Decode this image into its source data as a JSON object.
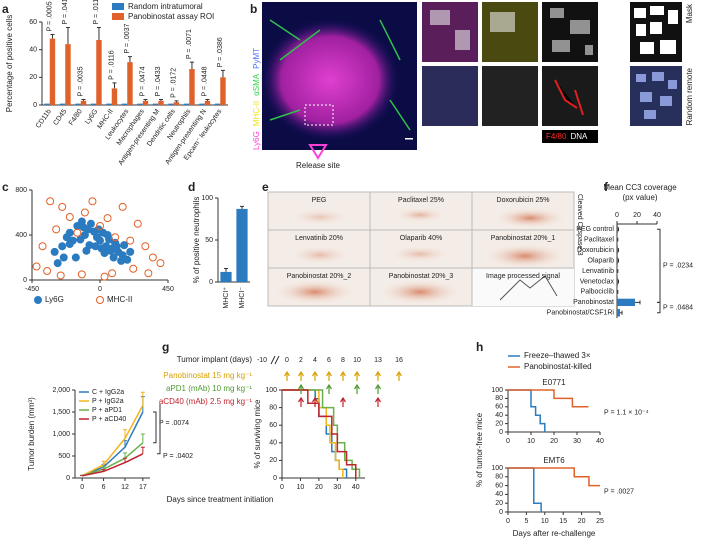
{
  "chart_data": [
    {
      "type": "bar",
      "panel": "a",
      "ylabel": "Percentage of positive cells",
      "categories": [
        "CD11b",
        "CD45",
        "F4/80",
        "Ly6G",
        "MHC-II",
        "Leukocytes",
        "Macrophages",
        "Antigen-presenting M",
        "Dendritic cells",
        "Neutrophils",
        "Antigen-presenting N",
        "Epcam⁻ leukocytes"
      ],
      "series": [
        {
          "name": "Random intratumoral",
          "color": "#2b7bc0",
          "values": [
            1,
            1,
            1,
            1,
            1,
            1,
            1,
            1,
            1,
            1,
            1,
            1
          ]
        },
        {
          "name": "Panobinostat assay ROI",
          "color": "#e0622a",
          "values": [
            48,
            44,
            3,
            47,
            12,
            31,
            3,
            3,
            2,
            26,
            3,
            20
          ],
          "errors": [
            3,
            12,
            1,
            9,
            4,
            4,
            1,
            1,
            1,
            5,
            1,
            5
          ]
        }
      ],
      "p_labels": [
        "P = .0005",
        "P = .0419",
        "P = .0035",
        "P = .0116",
        "P = .0116",
        "P = .0037",
        "P = .0474",
        "P = .0433",
        "P = .0172",
        "P = .0071",
        "P = .0448",
        "P = .0386"
      ],
      "ylim": [
        0,
        60
      ],
      "yticks": [
        0,
        20,
        40,
        60
      ],
      "legend": "upper right"
    },
    {
      "type": "scatter",
      "panel": "c",
      "xlim": [
        -450,
        450
      ],
      "xticks": [
        -450,
        0,
        450
      ],
      "ylim": [
        0,
        800
      ],
      "yticks": [
        0,
        400,
        800
      ],
      "legend": "lower left",
      "series": [
        {
          "name": "Ly6G",
          "color": "#2b7bc0",
          "filled": true,
          "x": [
            -300,
            -250,
            -220,
            -200,
            -180,
            -150,
            -120,
            -100,
            -80,
            -60,
            -40,
            -20,
            0,
            20,
            40,
            60,
            80,
            100,
            120,
            150,
            180,
            -280,
            -160,
            -90,
            -30,
            30,
            90,
            140,
            -200,
            -130,
            -70,
            10,
            70,
            -240,
            -10,
            50,
            110,
            -110,
            160,
            200
          ],
          "values": [
            250,
            300,
            380,
            420,
            350,
            480,
            520,
            400,
            450,
            500,
            430,
            380,
            350,
            420,
            300,
            360,
            280,
            330,
            250,
            220,
            180,
            150,
            200,
            260,
            300,
            240,
            200,
            170,
            320,
            360,
            310,
            280,
            260,
            200,
            450,
            400,
            300,
            470,
            310,
            250
          ]
        },
        {
          "name": "MHC-II",
          "color": "#e0622a",
          "filled": false,
          "x": [
            -420,
            -380,
            -330,
            -290,
            -250,
            -200,
            -150,
            -100,
            -50,
            0,
            50,
            100,
            150,
            200,
            250,
            300,
            350,
            400,
            -350,
            -120,
            80,
            220,
            -260,
            30,
            320
          ],
          "values": [
            120,
            300,
            700,
            450,
            650,
            560,
            420,
            600,
            700,
            480,
            550,
            380,
            650,
            350,
            500,
            300,
            200,
            150,
            80,
            50,
            60,
            100,
            40,
            30,
            60
          ]
        }
      ]
    },
    {
      "type": "bar",
      "panel": "d",
      "ylabel": "% of positive neutrophils",
      "categories": [
        "MHCI⁺",
        "MHCI⁻"
      ],
      "values": [
        12,
        87
      ],
      "errors": [
        4,
        3
      ],
      "color": "#2b7bc0",
      "ylim": [
        0,
        100
      ],
      "yticks": [
        0,
        50,
        100
      ]
    },
    {
      "type": "bar",
      "orientation": "horizontal",
      "panel": "f",
      "title": "Mean CC3 coverage",
      "subtitle": "(px value)",
      "categories": [
        "PEG control",
        "Paclitaxel",
        "Doxorubicin",
        "Olaparib",
        "Lenvatinib",
        "Venetoclax",
        "Palbociclib",
        "Panobinostat",
        "Panobinostat/CSF1Ri"
      ],
      "values": [
        1,
        0.5,
        1,
        1,
        0.5,
        1,
        0.5,
        18,
        3
      ],
      "errors": [
        0.5,
        0.3,
        0.5,
        0.5,
        0.3,
        0.5,
        0.3,
        5,
        2
      ],
      "color": "#2b7bc0",
      "xlim": [
        0,
        40
      ],
      "xticks": [
        0,
        20,
        40
      ],
      "p_labels": [
        "P = .0234",
        "P = .0484"
      ]
    },
    {
      "type": "line",
      "panel": "g",
      "ylabel": "Tumor burden (mm³)",
      "xlabel": "Days since treatment initiation",
      "x": [
        0,
        6,
        12,
        17
      ],
      "xlim": [
        -2,
        19
      ],
      "xticks": [
        0,
        6,
        12,
        17
      ],
      "ylim": [
        0,
        2000
      ],
      "yticks": [
        0,
        500,
        {
          "value": 1000,
          "label": "1,000"
        },
        {
          "value": 1500,
          "label": "1,500"
        },
        {
          "value": 2000,
          "label": "2,000"
        }
      ],
      "legend": "upper left",
      "series": [
        {
          "name": "C + IgG2a",
          "color": "#2b7bc0",
          "values": [
            50,
            250,
            700,
            1500
          ],
          "errors": [
            10,
            60,
            150,
            350
          ]
        },
        {
          "name": "P + IgG2a",
          "color": "#f2b51c",
          "values": [
            50,
            300,
            900,
            1650
          ],
          "errors": [
            10,
            80,
            200,
            300
          ]
        },
        {
          "name": "P + aPD1",
          "color": "#6ab04c",
          "values": [
            50,
            200,
            450,
            800
          ],
          "errors": [
            10,
            50,
            120,
            200
          ]
        },
        {
          "name": "P + aCD40",
          "color": "#c0232c",
          "values": [
            50,
            150,
            350,
            550
          ],
          "errors": [
            10,
            40,
            100,
            150
          ]
        }
      ],
      "p_labels": [
        "P = .0074",
        "P = .0402"
      ]
    },
    {
      "type": "step",
      "ylabel": "% of surviving mice",
      "xlim": [
        0,
        45
      ],
      "xticks": [
        0,
        10,
        20,
        30,
        40
      ],
      "ylim": [
        0,
        100
      ],
      "yticks": [
        0,
        20,
        40,
        60,
        80,
        100
      ],
      "series": [
        {
          "color": "#2b7bc0",
          "x": [
            0,
            18,
            20,
            24,
            27,
            29,
            31,
            35
          ],
          "values": [
            100,
            90,
            70,
            50,
            30,
            20,
            10,
            0
          ]
        },
        {
          "color": "#f2b51c",
          "x": [
            0,
            20,
            24,
            26,
            29,
            31,
            33
          ],
          "values": [
            100,
            80,
            60,
            40,
            20,
            10,
            0
          ]
        },
        {
          "color": "#6ab04c",
          "x": [
            0,
            22,
            28,
            30,
            34,
            38,
            42
          ],
          "values": [
            100,
            80,
            60,
            40,
            20,
            10,
            0
          ]
        },
        {
          "color": "#c0232c",
          "x": [
            0,
            14,
            20,
            27,
            30,
            35,
            40
          ],
          "values": [
            100,
            85,
            70,
            50,
            30,
            15,
            0
          ]
        }
      ]
    },
    {
      "type": "step",
      "panel": "h",
      "title": "E0771",
      "ylabel": "% of tumor-free mice",
      "xlim": [
        0,
        40
      ],
      "xticks": [
        0,
        10,
        20,
        30,
        40
      ],
      "ylim": [
        0,
        100
      ],
      "yticks": [
        0,
        20,
        40,
        60,
        80,
        100
      ],
      "legend": "upper right",
      "series": [
        {
          "name": "Freeze–thawed 3×",
          "color": "#2b7bc0",
          "x": [
            0,
            10,
            12,
            14,
            16
          ],
          "values": [
            100,
            60,
            40,
            20,
            0
          ]
        },
        {
          "name": "Panobinostat-killed",
          "color": "#e0622a",
          "x": [
            0,
            20,
            28,
            35
          ],
          "values": [
            100,
            80,
            60,
            60
          ]
        }
      ],
      "p_labels": [
        "P = 1.1 × 10⁻⁴"
      ]
    },
    {
      "type": "step",
      "title": "EMT6",
      "xlabel": "Days after re-challenge",
      "xlim": [
        0,
        25
      ],
      "xticks": [
        0,
        5,
        10,
        15,
        20,
        25
      ],
      "ylim": [
        0,
        100
      ],
      "yticks": [
        0,
        20,
        40,
        60,
        80,
        100
      ],
      "series": [
        {
          "color": "#2b7bc0",
          "x": [
            0,
            7,
            9
          ],
          "values": [
            100,
            20,
            0
          ]
        },
        {
          "color": "#e0622a",
          "x": [
            0,
            18,
            22,
            25
          ],
          "values": [
            100,
            80,
            60,
            60
          ]
        }
      ],
      "p_labels": [
        "P = .0027"
      ]
    }
  ],
  "panel_b": {
    "panel": "b",
    "channels": [
      {
        "text": "Ly6G",
        "color": "#ff3fd8"
      },
      {
        "text": "MHC-II",
        "color": "#f5e11a"
      },
      {
        "text": "αSMA",
        "color": "#35d04a"
      },
      {
        "text": "PyMT",
        "color": "#4a6dff"
      }
    ],
    "release_site": "Release site",
    "stain": [
      {
        "text": "F4/80",
        "color": "#ff2a2a"
      },
      {
        "text": "DNA",
        "color": "#ffffff"
      }
    ],
    "mask": "Mask",
    "random_remote": "Random remote"
  },
  "panel_e": {
    "panel": "e",
    "side_label": "Cleaved Caspase-3",
    "cells": [
      "PEG",
      "Paclitaxel 25%",
      "Doxorubicin 25%",
      "Lenvatinib 20%",
      "Olaparib 40%",
      "Panobinostat 20%_1",
      "Panobinostat 20%_2",
      "Panobinostat 20%_3",
      "Image processed signal"
    ]
  },
  "schedule": {
    "title": "Tumor implant (days)",
    "days": [
      -10,
      0,
      2,
      4,
      6,
      8,
      10,
      13,
      16
    ],
    "rows": [
      {
        "label": "Panobinostat 15 mg kg⁻¹",
        "color": "#d9a000",
        "days": [
          0,
          2,
          4,
          6,
          8,
          10,
          13,
          16
        ]
      },
      {
        "label": "aPD1 (mAb) 10 mg kg⁻¹",
        "color": "#4f9a2f",
        "days": [
          2,
          6,
          10,
          13
        ]
      },
      {
        "label": "aCD40 (mAb) 2.5 mg kg⁻¹",
        "color": "#c0232c",
        "days": [
          2,
          4,
          8,
          13
        ]
      }
    ]
  }
}
